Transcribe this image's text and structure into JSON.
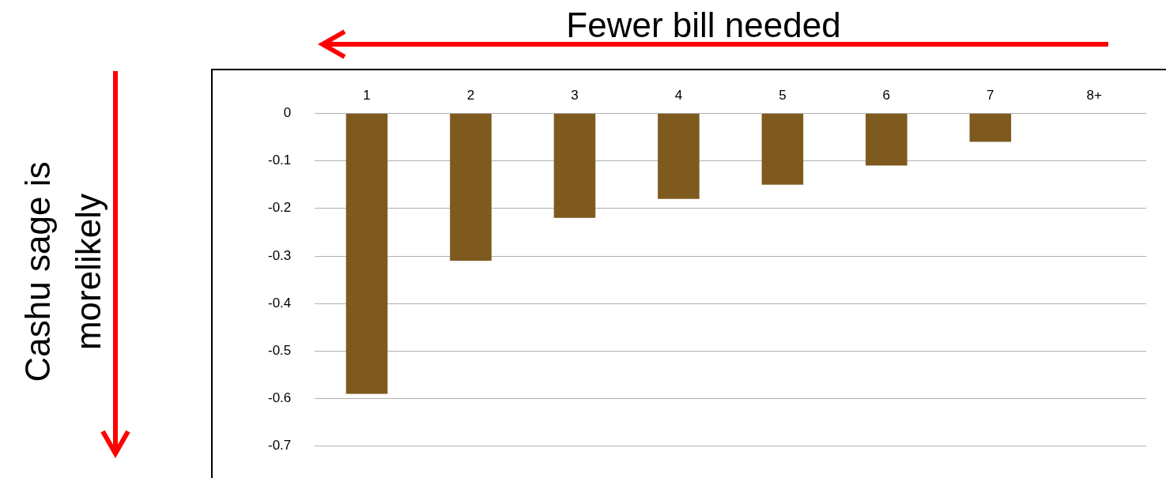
{
  "chart_data": {
    "type": "bar",
    "xlabel": "Fewer bill needed",
    "ylabel": "Cashu sage is morelikely",
    "categories": [
      "1",
      "2",
      "3",
      "4",
      "5",
      "6",
      "7",
      "8+"
    ],
    "values": [
      -0.59,
      -0.31,
      -0.22,
      -0.18,
      -0.15,
      -0.11,
      -0.06,
      0
    ],
    "color": "#7f5a1e",
    "ylim": [
      -0.7,
      0
    ],
    "yticks": [
      0,
      -0.1,
      -0.2,
      -0.3,
      -0.4,
      -0.5,
      -0.6,
      -0.7
    ],
    "grid": "y"
  }
}
